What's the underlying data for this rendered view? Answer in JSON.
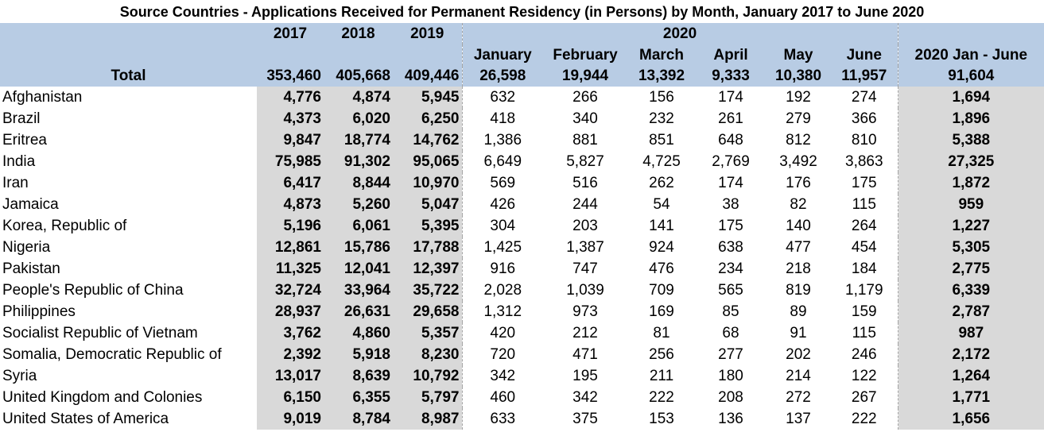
{
  "title": "Source Countries - Applications Received for Permanent Residency (in Persons) by Month,  January 2017 to June 2020",
  "headers": {
    "years": [
      "2017",
      "2018",
      "2019"
    ],
    "year_2020": "2020",
    "months": [
      "January",
      "February",
      "March",
      "April",
      "May",
      "June"
    ],
    "ytd": "2020 Jan - June",
    "total_label": "Total"
  },
  "totals": {
    "years": [
      "353,460",
      "405,668",
      "409,446"
    ],
    "months": [
      "26,598",
      "19,944",
      "13,392",
      "9,333",
      "10,380",
      "11,957"
    ],
    "ytd": "91,604"
  },
  "rows": [
    {
      "country": "Afghanistan",
      "years": [
        "4,776",
        "4,874",
        "5,945"
      ],
      "months": [
        "632",
        "266",
        "156",
        "174",
        "192",
        "274"
      ],
      "ytd": "1,694"
    },
    {
      "country": "Brazil",
      "years": [
        "4,373",
        "6,020",
        "6,250"
      ],
      "months": [
        "418",
        "340",
        "232",
        "261",
        "279",
        "366"
      ],
      "ytd": "1,896"
    },
    {
      "country": "Eritrea",
      "years": [
        "9,847",
        "18,774",
        "14,762"
      ],
      "months": [
        "1,386",
        "881",
        "851",
        "648",
        "812",
        "810"
      ],
      "ytd": "5,388"
    },
    {
      "country": "India",
      "years": [
        "75,985",
        "91,302",
        "95,065"
      ],
      "months": [
        "6,649",
        "5,827",
        "4,725",
        "2,769",
        "3,492",
        "3,863"
      ],
      "ytd": "27,325"
    },
    {
      "country": "Iran",
      "years": [
        "6,417",
        "8,844",
        "10,970"
      ],
      "months": [
        "569",
        "516",
        "262",
        "174",
        "176",
        "175"
      ],
      "ytd": "1,872"
    },
    {
      "country": "Jamaica",
      "years": [
        "4,873",
        "5,260",
        "5,047"
      ],
      "months": [
        "426",
        "244",
        "54",
        "38",
        "82",
        "115"
      ],
      "ytd": "959"
    },
    {
      "country": "Korea, Republic of",
      "years": [
        "5,196",
        "6,061",
        "5,395"
      ],
      "months": [
        "304",
        "203",
        "141",
        "175",
        "140",
        "264"
      ],
      "ytd": "1,227"
    },
    {
      "country": "Nigeria",
      "years": [
        "12,861",
        "15,786",
        "17,788"
      ],
      "months": [
        "1,425",
        "1,387",
        "924",
        "638",
        "477",
        "454"
      ],
      "ytd": "5,305"
    },
    {
      "country": "Pakistan",
      "years": [
        "11,325",
        "12,041",
        "12,397"
      ],
      "months": [
        "916",
        "747",
        "476",
        "234",
        "218",
        "184"
      ],
      "ytd": "2,775"
    },
    {
      "country": "People's Republic of China",
      "years": [
        "32,724",
        "33,964",
        "35,722"
      ],
      "months": [
        "2,028",
        "1,039",
        "709",
        "565",
        "819",
        "1,179"
      ],
      "ytd": "6,339"
    },
    {
      "country": "Philippines",
      "years": [
        "28,937",
        "26,631",
        "29,658"
      ],
      "months": [
        "1,312",
        "973",
        "169",
        "85",
        "89",
        "159"
      ],
      "ytd": "2,787"
    },
    {
      "country": "Socialist Republic of Vietnam",
      "years": [
        "3,762",
        "4,860",
        "5,357"
      ],
      "months": [
        "420",
        "212",
        "81",
        "68",
        "91",
        "115"
      ],
      "ytd": "987"
    },
    {
      "country": "Somalia, Democratic Republic of",
      "years": [
        "2,392",
        "5,918",
        "8,230"
      ],
      "months": [
        "720",
        "471",
        "256",
        "277",
        "202",
        "246"
      ],
      "ytd": "2,172"
    },
    {
      "country": "Syria",
      "years": [
        "13,017",
        "8,639",
        "10,792"
      ],
      "months": [
        "342",
        "195",
        "211",
        "180",
        "214",
        "122"
      ],
      "ytd": "1,264"
    },
    {
      "country": "United Kingdom and Colonies",
      "years": [
        "6,150",
        "6,355",
        "5,797"
      ],
      "months": [
        "460",
        "342",
        "222",
        "208",
        "272",
        "267"
      ],
      "ytd": "1,771"
    },
    {
      "country": "United States of America",
      "years": [
        "9,019",
        "8,784",
        "8,987"
      ],
      "months": [
        "633",
        "375",
        "153",
        "136",
        "137",
        "222"
      ],
      "ytd": "1,656"
    }
  ],
  "colors": {
    "header_fill": "#b8cce4",
    "shaded_fill": "#d9d9d9",
    "grid_dash": "#a6a6a6"
  }
}
